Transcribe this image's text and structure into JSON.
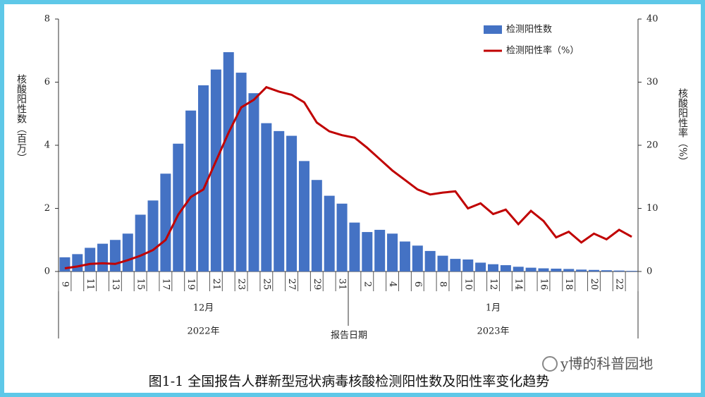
{
  "chart_data": {
    "type": "combo",
    "title": "图1-1 全国报告人群新型冠状病毒核酸检测阳性数及阳性率变化趋势",
    "y_label": "核酸阳性数（百万）",
    "y2_label": "核酸阳性率（%）",
    "annotation": "报告日期",
    "watermark": "y博的科普园地",
    "categories": [
      "9",
      null,
      "11",
      null,
      "13",
      null,
      "15",
      null,
      "17",
      null,
      "19",
      null,
      "21",
      null,
      "23",
      null,
      "25",
      null,
      "27",
      null,
      "29",
      null,
      "31",
      null,
      "2",
      null,
      "4",
      null,
      "6",
      null,
      "8",
      null,
      "10",
      null,
      "12",
      null,
      "14",
      null,
      "16",
      null,
      "18",
      null,
      "20",
      null,
      "22",
      null
    ],
    "x_groups": [
      {
        "label": "12月",
        "year": "2022年"
      },
      {
        "label": "1月",
        "year": "2023年"
      }
    ],
    "series": [
      {
        "name": "检测阳性数",
        "type": "bar",
        "color": "#4472c4",
        "values": [
          0.45,
          0.55,
          0.75,
          0.88,
          1.0,
          1.2,
          1.8,
          2.25,
          3.1,
          4.05,
          5.1,
          5.9,
          6.4,
          6.95,
          6.3,
          5.65,
          4.7,
          4.45,
          4.3,
          3.5,
          2.9,
          2.4,
          2.15,
          1.55,
          1.25,
          1.32,
          1.2,
          0.95,
          0.82,
          0.65,
          0.5,
          0.4,
          0.38,
          0.28,
          0.23,
          0.2,
          0.15,
          0.12,
          0.1,
          0.09,
          0.08,
          0.06,
          0.05,
          0.04,
          0.03,
          0.02
        ]
      },
      {
        "name": "检测阳性率（%）",
        "type": "line",
        "axis": "y2",
        "color": "#c00000",
        "values": [
          0.5,
          0.8,
          1.2,
          1.3,
          1.2,
          1.8,
          2.5,
          3.4,
          5,
          9,
          11.8,
          13,
          17.5,
          22,
          26,
          27.2,
          29.2,
          28.5,
          28,
          26.8,
          23.6,
          22.2,
          21.6,
          21.2,
          19.6,
          17.8,
          16,
          14.5,
          13,
          12.2,
          12.5,
          12.7,
          10,
          10.8,
          9.1,
          9.8,
          7.5,
          9.6,
          8,
          5.4,
          6.3,
          4.6,
          6,
          5.1,
          6.6,
          5.5
        ]
      }
    ],
    "ylim": [
      0,
      8
    ],
    "yticks": [
      0,
      2,
      4,
      6,
      8
    ],
    "y2lim": [
      0,
      40
    ],
    "y2ticks": [
      0,
      10,
      20,
      30,
      40
    ],
    "grid": false
  }
}
